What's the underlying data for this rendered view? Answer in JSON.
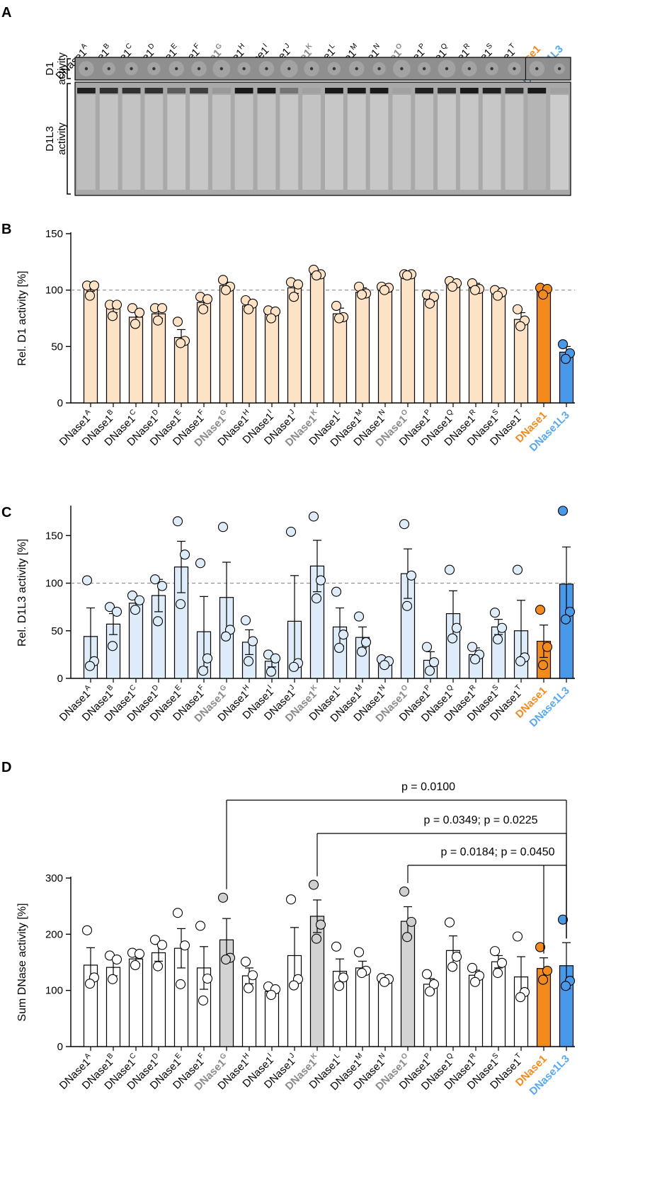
{
  "variant_prefix": "DNase1",
  "lanes": [
    {
      "sup": "A",
      "bold": false,
      "color": "#000000"
    },
    {
      "sup": "B",
      "bold": false,
      "color": "#000000"
    },
    {
      "sup": "C",
      "bold": false,
      "color": "#000000"
    },
    {
      "sup": "D",
      "bold": false,
      "color": "#000000"
    },
    {
      "sup": "E",
      "bold": false,
      "color": "#000000"
    },
    {
      "sup": "F",
      "bold": false,
      "color": "#000000"
    },
    {
      "sup": "G",
      "bold": true,
      "color": "#8a8a8a"
    },
    {
      "sup": "H",
      "bold": false,
      "color": "#000000"
    },
    {
      "sup": "I",
      "bold": false,
      "color": "#000000"
    },
    {
      "sup": "J",
      "bold": false,
      "color": "#000000"
    },
    {
      "sup": "K",
      "bold": true,
      "color": "#8a8a8a"
    },
    {
      "sup": "L",
      "bold": false,
      "color": "#000000"
    },
    {
      "sup": "M",
      "bold": false,
      "color": "#000000"
    },
    {
      "sup": "N",
      "bold": false,
      "color": "#000000"
    },
    {
      "sup": "O",
      "bold": true,
      "color": "#8a8a8a"
    },
    {
      "sup": "P",
      "bold": false,
      "color": "#000000"
    },
    {
      "sup": "Q",
      "bold": false,
      "color": "#000000"
    },
    {
      "sup": "R",
      "bold": false,
      "color": "#000000"
    },
    {
      "sup": "S",
      "bold": false,
      "color": "#000000"
    },
    {
      "sup": "T",
      "bold": false,
      "color": "#000000"
    }
  ],
  "controls": [
    {
      "label": "DNase1",
      "color": "#f28a1e"
    },
    {
      "label": "DNase1L3",
      "color": "#58a8f0"
    }
  ],
  "colors": {
    "peach_fill": "#fde2c6",
    "lightblue_fill": "#deebf8",
    "grey_fill": "#d3d3d3",
    "white_fill": "#ffffff",
    "orange": "#f28a1e",
    "blue": "#4a98e8",
    "dashed": "#8c8c8c"
  },
  "gel": {
    "panel_letter": "A",
    "row1_label": [
      "D1",
      "activity"
    ],
    "row2_label": [
      "D1L3",
      "activity"
    ],
    "d1_halo": [
      3,
      2,
      2,
      2,
      3,
      3,
      4,
      2,
      3,
      4,
      3,
      2,
      3,
      2,
      4,
      2,
      4,
      3,
      2,
      2,
      3,
      1
    ],
    "d1l3_band": [
      0.9,
      0.8,
      0.8,
      0.8,
      0.5,
      0.7,
      0.1,
      0.95,
      0.95,
      0.35,
      0.05,
      0.95,
      0.95,
      0.95,
      0.05,
      0.9,
      0.8,
      0.95,
      0.9,
      0.8,
      0.95,
      0.05
    ],
    "d1l3_smear": [
      0.25,
      0.3,
      0.3,
      0.3,
      0.35,
      0.35,
      0.3,
      0.3,
      0.3,
      0.35,
      0.3,
      0.35,
      0.35,
      0.35,
      0.3,
      0.3,
      0.35,
      0.35,
      0.35,
      0.3,
      0.15,
      0.4
    ]
  },
  "chart_data": [
    {
      "panel": "B",
      "type": "bar",
      "ylabel": "Rel. D1 activity [%]",
      "ylim": [
        0,
        150
      ],
      "yticks": [
        0,
        50,
        100,
        150
      ],
      "reference_line": 100,
      "categories": [
        "DNase1A",
        "DNase1B",
        "DNase1C",
        "DNase1D",
        "DNase1E",
        "DNase1F",
        "DNase1G",
        "DNase1H",
        "DNase1I",
        "DNase1J",
        "DNase1K",
        "DNase1L",
        "DNase1M",
        "DNase1N",
        "DNase1O",
        "DNase1P",
        "DNase1Q",
        "DNase1R",
        "DNase1S",
        "DNase1T",
        "DNase1",
        "DNase1L3"
      ],
      "values": [
        101,
        84,
        76,
        79,
        58,
        89,
        104,
        86,
        79,
        102,
        114,
        79,
        98,
        101,
        113,
        92,
        105,
        102,
        97,
        74,
        99,
        45
      ],
      "errors": [
        2,
        4,
        5,
        4,
        7,
        4,
        3,
        3,
        3,
        5,
        3,
        5,
        4,
        2,
        1,
        3,
        3,
        4,
        2,
        6,
        3,
        5
      ],
      "points": [
        [
          104,
          104,
          95
        ],
        [
          87,
          87,
          77
        ],
        [
          84,
          80,
          70
        ],
        [
          84,
          84,
          73
        ],
        [
          72,
          55,
          53
        ],
        [
          94,
          92,
          83
        ],
        [
          109,
          103,
          100
        ],
        [
          91,
          88,
          83
        ],
        [
          82,
          81,
          75
        ],
        [
          107,
          105,
          94
        ],
        [
          118,
          114,
          113
        ],
        [
          86,
          76,
          75
        ],
        [
          103,
          97,
          96
        ],
        [
          103,
          102,
          100
        ],
        [
          114,
          114,
          113
        ],
        [
          96,
          94,
          88
        ],
        [
          108,
          106,
          103
        ],
        [
          106,
          101,
          100
        ],
        [
          100,
          98,
          95
        ],
        [
          83,
          73,
          68
        ],
        [
          102,
          101,
          96
        ],
        [
          52,
          44,
          39
        ]
      ],
      "fills": [
        "peach",
        "peach",
        "peach",
        "peach",
        "peach",
        "peach",
        "peach",
        "peach",
        "peach",
        "peach",
        "peach",
        "peach",
        "peach",
        "peach",
        "peach",
        "peach",
        "peach",
        "peach",
        "peach",
        "peach",
        "orange",
        "blue"
      ]
    },
    {
      "panel": "C",
      "type": "bar",
      "ylabel": "Rel. D1L3 activity [%]",
      "ylim": [
        0,
        180
      ],
      "yticks": [
        0,
        50,
        100,
        150
      ],
      "reference_line": 100,
      "categories": [
        "DNase1A",
        "DNase1B",
        "DNase1C",
        "DNase1D",
        "DNase1E",
        "DNase1F",
        "DNase1G",
        "DNase1H",
        "DNase1I",
        "DNase1J",
        "DNase1K",
        "DNase1L",
        "DNase1M",
        "DNase1N",
        "DNase1O",
        "DNase1P",
        "DNase1Q",
        "DNase1R",
        "DNase1S",
        "DNase1T",
        "DNase1",
        "DNase1L3"
      ],
      "values": [
        44,
        57,
        79,
        87,
        117,
        49,
        85,
        38,
        18,
        60,
        118,
        54,
        43,
        17,
        110,
        19,
        68,
        25,
        54,
        50,
        39,
        99
      ],
      "errors": [
        30,
        11,
        6,
        17,
        27,
        37,
        37,
        13,
        6,
        48,
        27,
        20,
        11,
        3,
        26,
        9,
        24,
        7,
        8,
        32,
        17,
        39
      ],
      "points": [
        [
          103,
          18,
          13
        ],
        [
          75,
          70,
          34
        ],
        [
          87,
          82,
          72
        ],
        [
          104,
          97,
          60
        ],
        [
          165,
          130,
          78
        ],
        [
          121,
          21,
          8
        ],
        [
          159,
          51,
          44
        ],
        [
          61,
          39,
          18
        ],
        [
          25,
          21,
          7
        ],
        [
          154,
          16,
          12
        ],
        [
          170,
          103,
          84
        ],
        [
          91,
          46,
          32
        ],
        [
          65,
          38,
          28
        ],
        [
          20,
          18,
          14
        ],
        [
          162,
          108,
          76
        ],
        [
          33,
          17,
          8
        ],
        [
          114,
          53,
          42
        ],
        [
          33,
          25,
          20
        ],
        [
          69,
          53,
          41
        ],
        [
          114,
          22,
          18
        ],
        [
          72,
          33,
          14
        ],
        [
          176,
          70,
          62
        ]
      ],
      "fills": [
        "lightblue",
        "lightblue",
        "lightblue",
        "lightblue",
        "lightblue",
        "lightblue",
        "lightblue",
        "lightblue",
        "lightblue",
        "lightblue",
        "lightblue",
        "lightblue",
        "lightblue",
        "lightblue",
        "lightblue",
        "lightblue",
        "lightblue",
        "lightblue",
        "lightblue",
        "lightblue",
        "orange",
        "blue"
      ]
    },
    {
      "panel": "D",
      "type": "bar",
      "ylabel": "Sum DNase activity [%]",
      "ylim": [
        0,
        300
      ],
      "yticks": [
        0,
        100,
        200,
        300
      ],
      "categories": [
        "DNase1A",
        "DNase1B",
        "DNase1C",
        "DNase1D",
        "DNase1E",
        "DNase1F",
        "DNase1G",
        "DNase1H",
        "DNase1I",
        "DNase1J",
        "DNase1K",
        "DNase1L",
        "DNase1M",
        "DNase1N",
        "DNase1O",
        "DNase1P",
        "DNase1Q",
        "DNase1R",
        "DNase1S",
        "DNase1T",
        "DNase1",
        "DNase1L3"
      ],
      "values": [
        145,
        141,
        156,
        167,
        175,
        140,
        190,
        126,
        98,
        162,
        232,
        134,
        140,
        118,
        223,
        111,
        171,
        127,
        151,
        124,
        139,
        144
      ],
      "errors": [
        31,
        15,
        8,
        15,
        35,
        38,
        38,
        14,
        8,
        50,
        29,
        22,
        12,
        4,
        26,
        10,
        26,
        9,
        11,
        36,
        19,
        41
      ],
      "points": [
        [
          207,
          123,
          112
        ],
        [
          162,
          155,
          120
        ],
        [
          167,
          165,
          145
        ],
        [
          190,
          181,
          143
        ],
        [
          238,
          180,
          111
        ],
        [
          215,
          121,
          82
        ],
        [
          265,
          158,
          155
        ],
        [
          151,
          127,
          104
        ],
        [
          107,
          102,
          92
        ],
        [
          262,
          120,
          109
        ],
        [
          288,
          217,
          192
        ],
        [
          178,
          123,
          108
        ],
        [
          168,
          135,
          131
        ],
        [
          122,
          120,
          115
        ],
        [
          276,
          222,
          195
        ],
        [
          129,
          111,
          98
        ],
        [
          221,
          160,
          142
        ],
        [
          140,
          126,
          115
        ],
        [
          170,
          149,
          131
        ],
        [
          196,
          97,
          88
        ],
        [
          177,
          135,
          119
        ],
        [
          226,
          117,
          108
        ]
      ],
      "fills": [
        "white",
        "white",
        "white",
        "white",
        "white",
        "white",
        "grey",
        "white",
        "white",
        "white",
        "grey",
        "white",
        "white",
        "white",
        "grey",
        "white",
        "white",
        "white",
        "white",
        "white",
        "orange",
        "blue"
      ],
      "comparisons": [
        {
          "label": "p = 0.0100",
          "from": 6,
          "to": [
            21
          ]
        },
        {
          "label": "p = 0.0349; p = 0.0225",
          "from": 10,
          "to": [
            21
          ]
        },
        {
          "label": "p = 0.0184; p = 0.0450",
          "from": 14,
          "to": [
            20,
            21
          ]
        }
      ]
    }
  ]
}
